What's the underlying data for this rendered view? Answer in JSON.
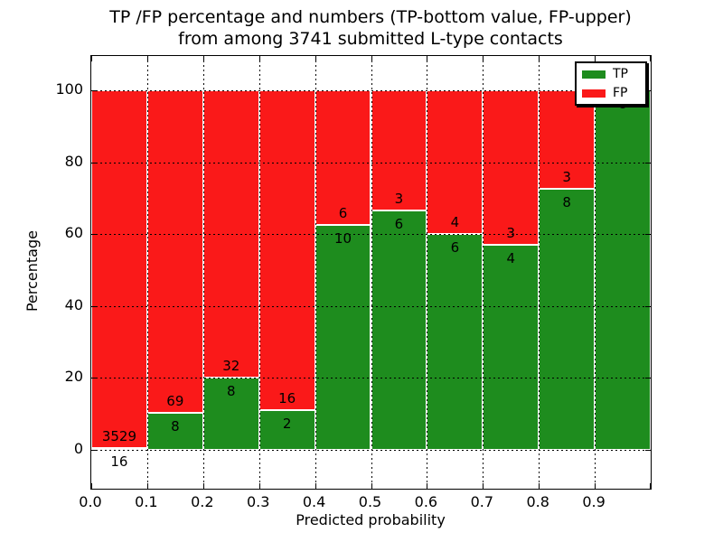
{
  "chart_data": {
    "type": "bar",
    "stacked": true,
    "title": "TP /FP percentage and numbers (TP-bottom value, FP-upper) from among 3741 submitted L-type contacts",
    "title_line1": "TP /FP percentage and numbers (TP-bottom value, FP-upper)",
    "title_line2": "from among 3741 submitted L-type contacts",
    "xlabel": "Predicted probability",
    "ylabel": "Percentage",
    "xlim": [
      0.0,
      1.0
    ],
    "ylim": [
      -11,
      110
    ],
    "grid": true,
    "legend_position": "upper right",
    "x_tick_labels": [
      "0.0",
      "0.1",
      "0.2",
      "0.3",
      "0.4",
      "0.5",
      "0.6",
      "0.7",
      "0.8",
      "0.9"
    ],
    "y_ticks": [
      0,
      20,
      40,
      60,
      80,
      100
    ],
    "series": [
      {
        "name": "TP",
        "color": "#1e8c1e"
      },
      {
        "name": "FP",
        "color": "#fa1919"
      }
    ],
    "bins": [
      {
        "x_start": 0.0,
        "x_end": 0.1,
        "tp": 16,
        "fp": 3529,
        "tp_pct": 0.45
      },
      {
        "x_start": 0.1,
        "x_end": 0.2,
        "tp": 8,
        "fp": 69,
        "tp_pct": 10.39
      },
      {
        "x_start": 0.2,
        "x_end": 0.3,
        "tp": 8,
        "fp": 32,
        "tp_pct": 20.0
      },
      {
        "x_start": 0.3,
        "x_end": 0.4,
        "tp": 2,
        "fp": 16,
        "tp_pct": 11.11
      },
      {
        "x_start": 0.4,
        "x_end": 0.5,
        "tp": 10,
        "fp": 6,
        "tp_pct": 62.5
      },
      {
        "x_start": 0.5,
        "x_end": 0.6,
        "tp": 6,
        "fp": 3,
        "tp_pct": 66.67
      },
      {
        "x_start": 0.6,
        "x_end": 0.7,
        "tp": 6,
        "fp": 4,
        "tp_pct": 60.0
      },
      {
        "x_start": 0.7,
        "x_end": 0.8,
        "tp": 4,
        "fp": 3,
        "tp_pct": 57.14
      },
      {
        "x_start": 0.8,
        "x_end": 0.9,
        "tp": 8,
        "fp": 3,
        "tp_pct": 72.73
      },
      {
        "x_start": 0.9,
        "x_end": 1.0,
        "tp": 8,
        "fp": 0,
        "tp_pct": 100.0
      }
    ]
  }
}
